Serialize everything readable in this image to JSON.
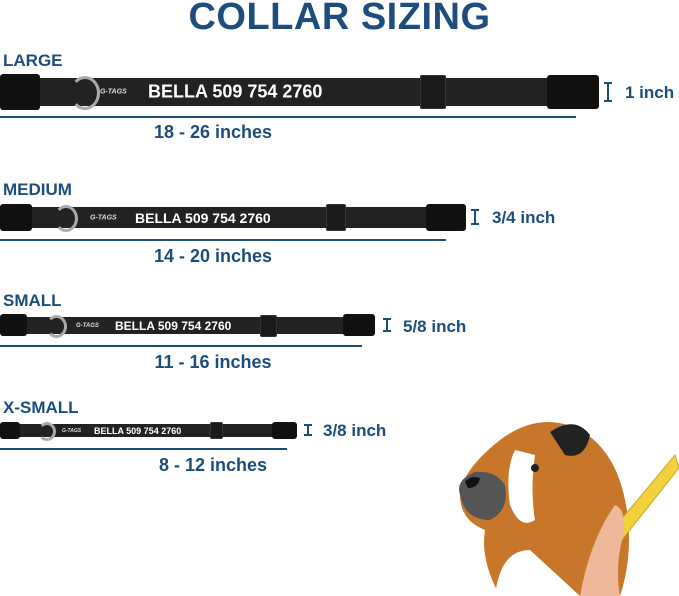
{
  "title": "COLLAR SIZING",
  "brand_logo": "G-TAGS",
  "accent_color": "#1c4d7c",
  "sizes": [
    {
      "name": "LARGE",
      "collar_text": "BELLA 509 754 2760",
      "length": "18 - 26 inches",
      "width": "1 inch"
    },
    {
      "name": "MEDIUM",
      "collar_text": "BELLA 509 754 2760",
      "length": "14 - 20 inches",
      "width": "3/4 inch"
    },
    {
      "name": "SMALL",
      "collar_text": "BELLA 509 754 2760",
      "length": "11 - 16 inches",
      "width": "5/8 inch"
    },
    {
      "name": "X-SMALL",
      "collar_text": "BELLA 509 754 2760",
      "length": "8 - 12 inches",
      "width": "3/8 inch"
    }
  ]
}
